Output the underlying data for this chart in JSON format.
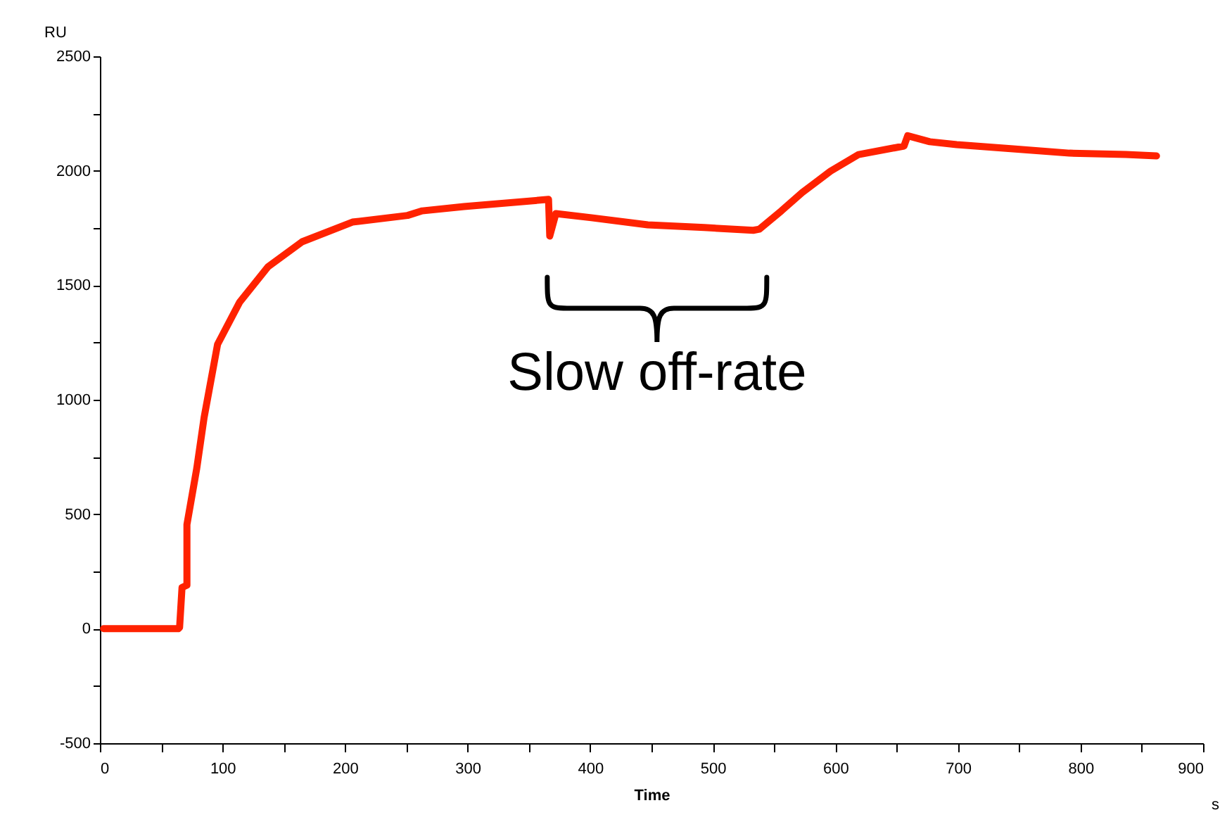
{
  "chart_data": {
    "type": "line",
    "xlabel": "Time",
    "ylabel": "RU",
    "xlim": [
      0,
      900
    ],
    "xticks": [
      0,
      {
        "value": 50,
        "label": null
      },
      100,
      {
        "value": 150,
        "label": null
      },
      200,
      {
        "value": 250,
        "label": null
      },
      300,
      {
        "value": 350,
        "label": null
      },
      400,
      {
        "value": 450,
        "label": null
      },
      500,
      {
        "value": 550,
        "label": null
      },
      600,
      {
        "value": 650,
        "label": null
      },
      700,
      {
        "value": 750,
        "label": null
      },
      800,
      {
        "value": 850,
        "label": null
      },
      900
    ],
    "ylim": [
      -500,
      2500
    ],
    "yticks": [
      -500,
      {
        "value": -250,
        "label": null
      },
      0,
      {
        "value": 250,
        "label": null
      },
      500,
      {
        "value": 750,
        "label": null
      },
      1000,
      {
        "value": 1250,
        "label": null
      },
      1500,
      {
        "value": 1750,
        "label": null
      },
      2000,
      {
        "value": 2250,
        "label": null
      },
      2500
    ],
    "grid": false,
    "legend": false,
    "marker": "none",
    "line_style": "solid",
    "series": [
      {
        "color": "#ff2200",
        "x": [
          3,
          64,
          65,
          67,
          71,
          71,
          79,
          85,
          96,
          114,
          137,
          165,
          206,
          251,
          263,
          297,
          366,
          367,
          372,
          401,
          447,
          493,
          533,
          538,
          556,
          573,
          596,
          619,
          656,
          659,
          677,
          699,
          745,
          791,
          837,
          862
        ],
        "values": [
          0,
          0,
          5,
          180,
          190,
          455,
          700,
          922,
          1242,
          1426,
          1580,
          1690,
          1776,
          1805,
          1825,
          1844,
          1875,
          1715,
          1813,
          1795,
          1764,
          1752,
          1740,
          1745,
          1825,
          1905,
          1998,
          2071,
          2108,
          2153,
          2127,
          2114,
          2096,
          2077,
          2071,
          2065
        ]
      }
    ],
    "annotations": [
      "Slow off-rate",
      "s"
    ]
  }
}
